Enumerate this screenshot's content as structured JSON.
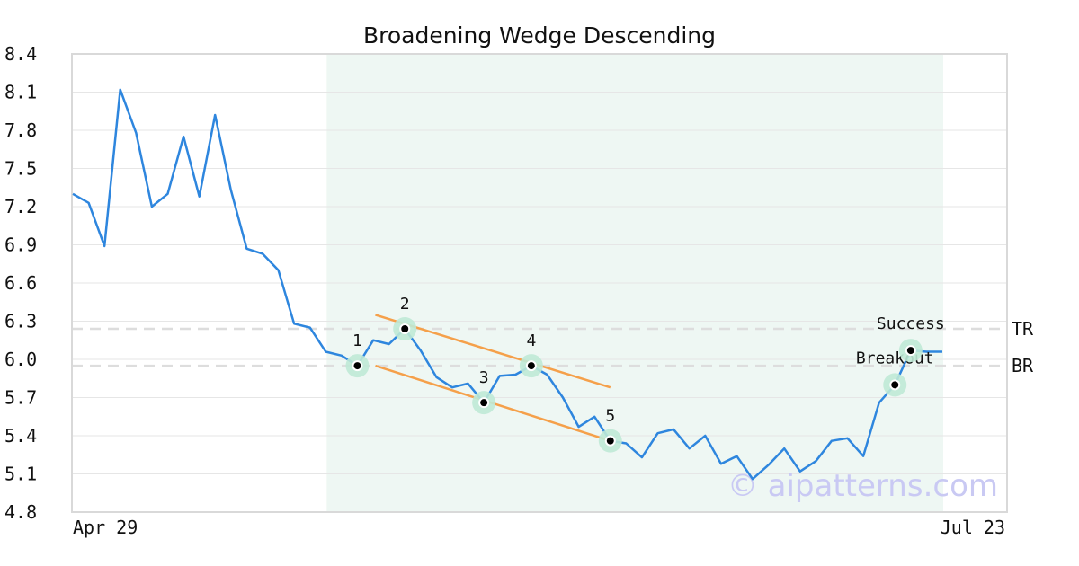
{
  "chart_data": {
    "type": "line",
    "title": "Broadening Wedge Descending",
    "ylim": [
      4.8,
      8.4
    ],
    "y_ticks": [
      "8.4",
      "8.1",
      "7.8",
      "7.5",
      "7.2",
      "6.9",
      "6.6",
      "6.3",
      "6.0",
      "5.7",
      "5.4",
      "5.1",
      "4.8"
    ],
    "x_tick_labels": [
      "Apr 29",
      "Jul 23"
    ],
    "grid": true,
    "series": [
      {
        "color": "#2e86de",
        "values": [
          7.3,
          7.23,
          6.89,
          8.12,
          7.78,
          7.2,
          7.3,
          7.75,
          7.28,
          7.92,
          7.33,
          6.87,
          6.83,
          6.7,
          6.28,
          6.25,
          6.06,
          6.03,
          5.95,
          6.15,
          6.12,
          6.24,
          6.07,
          5.86,
          5.78,
          5.81,
          5.66,
          5.87,
          5.88,
          5.95,
          5.88,
          5.7,
          5.47,
          5.55,
          5.36,
          5.34,
          5.23,
          5.42,
          5.45,
          5.3,
          5.4,
          5.18,
          5.24,
          5.06,
          5.17,
          5.3,
          5.12,
          5.2,
          5.36,
          5.38,
          5.24,
          5.66,
          5.8,
          6.07,
          6.06,
          6.06
        ]
      }
    ],
    "pattern_region": {
      "start_index": 16,
      "end_index": 55,
      "color": "#eef7f3"
    },
    "pattern_points": [
      {
        "label": "1",
        "index": 18,
        "value": 5.95
      },
      {
        "label": "2",
        "index": 21,
        "value": 6.24
      },
      {
        "label": "3",
        "index": 26,
        "value": 5.66
      },
      {
        "label": "4",
        "index": 29,
        "value": 5.95
      },
      {
        "label": "5",
        "index": 34,
        "value": 5.36
      }
    ],
    "trendlines": [
      {
        "color": "#f5a04a",
        "from": {
          "index": 18,
          "value": 6.35
        },
        "to": {
          "index": 34,
          "value": 5.78
        }
      },
      {
        "color": "#f5a04a",
        "from": {
          "index": 18,
          "value": 5.95
        },
        "to": {
          "index": 34,
          "value": 5.36
        }
      }
    ],
    "levels": [
      {
        "label": "TR",
        "value": 6.24
      },
      {
        "label": "BR",
        "value": 5.95
      }
    ],
    "annotations": [
      {
        "label": "Breakout",
        "index": 52,
        "value": 5.8
      },
      {
        "label": "Success",
        "index": 53,
        "value": 6.07
      }
    ],
    "watermark": "© aipatterns.com",
    "colors": {
      "line": "#2e86de",
      "trend": "#f5a04a",
      "marker_halo": "#bfe9d6",
      "grid": "#e6e6e6",
      "level": "#dddddd",
      "axis": "#d9d9d9"
    }
  }
}
